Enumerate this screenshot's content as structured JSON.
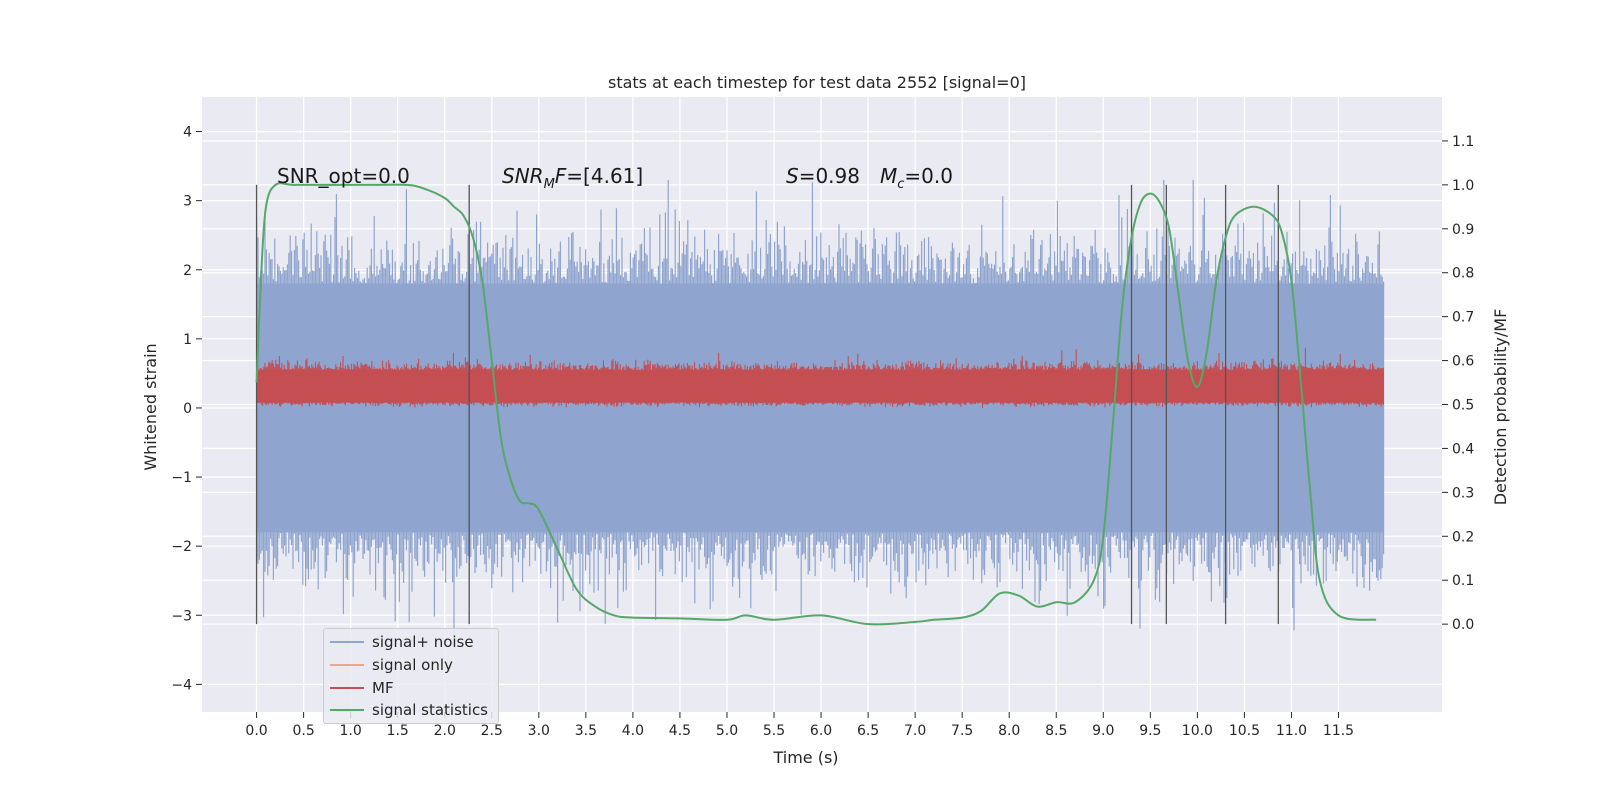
{
  "chart_data": {
    "type": "line",
    "title": "stats at each timestep for test data 2552 [signal=0]",
    "xlabel": "Time (s)",
    "ylabel": "Whitened strain",
    "y2label": "Detection probability/MF",
    "xlim": [
      -0.58,
      12.6
    ],
    "ylim": [
      -4.4,
      4.5
    ],
    "y2lim": [
      -0.2,
      1.2
    ],
    "x_ticks": [
      "0.0",
      "0.5",
      "1.0",
      "1.5",
      "2.0",
      "2.5",
      "3.0",
      "3.5",
      "4.0",
      "4.5",
      "5.0",
      "5.5",
      "6.0",
      "6.5",
      "7.0",
      "7.5",
      "8.0",
      "8.5",
      "9.0",
      "9.5",
      "10.0",
      "10.5",
      "11.0",
      "11.5"
    ],
    "y_ticks": [
      "4",
      "3",
      "2",
      "1",
      "0",
      "−1",
      "−2",
      "−3",
      "−4"
    ],
    "y2_ticks": [
      "1.1",
      "1.0",
      "0.9",
      "0.8",
      "0.7",
      "0.6",
      "0.5",
      "0.4",
      "0.3",
      "0.2",
      "0.1",
      "0.0"
    ],
    "grid": true,
    "legend_placement": "lower-left",
    "series": [
      {
        "name": "signal+ noise",
        "color": "#8fa5cf",
        "axis": "left",
        "style": "noise",
        "x_range": [
          0.0,
          11.98
        ],
        "band": [
          -1.8,
          1.8
        ],
        "peaks": [
          3.3,
          -3.2
        ]
      },
      {
        "name": "signal only",
        "color": "#e8a98e",
        "axis": "left",
        "values": []
      },
      {
        "name": "MF",
        "color": "#c44e52",
        "axis": "left",
        "style": "noise",
        "x_range": [
          0.0,
          11.98
        ],
        "band": [
          0.0,
          0.75
        ]
      },
      {
        "name": "signal statistics",
        "color": "#55a868",
        "axis": "right",
        "x": [
          0.0,
          0.05,
          0.1,
          0.2,
          0.4,
          0.8,
          1.2,
          1.6,
          1.8,
          2.0,
          2.1,
          2.2,
          2.3,
          2.4,
          2.5,
          2.6,
          2.7,
          2.8,
          2.9,
          3.0,
          3.2,
          3.4,
          3.6,
          3.8,
          4.0,
          4.5,
          5.0,
          5.2,
          5.5,
          6.0,
          6.5,
          7.0,
          7.2,
          7.5,
          7.7,
          7.9,
          8.1,
          8.3,
          8.5,
          8.7,
          8.9,
          9.0,
          9.1,
          9.2,
          9.3,
          9.4,
          9.5,
          9.6,
          9.7,
          9.8,
          9.9,
          10.0,
          10.1,
          10.2,
          10.3,
          10.4,
          10.6,
          10.8,
          10.9,
          11.0,
          11.1,
          11.2,
          11.3,
          11.5,
          11.9
        ],
        "y": [
          0.55,
          0.8,
          0.95,
          1.0,
          1.0,
          1.0,
          1.0,
          1.0,
          0.99,
          0.97,
          0.95,
          0.93,
          0.88,
          0.78,
          0.6,
          0.42,
          0.33,
          0.28,
          0.275,
          0.26,
          0.17,
          0.08,
          0.04,
          0.02,
          0.015,
          0.013,
          0.01,
          0.02,
          0.01,
          0.02,
          0.0,
          0.005,
          0.01,
          0.015,
          0.03,
          0.07,
          0.065,
          0.04,
          0.05,
          0.05,
          0.1,
          0.2,
          0.45,
          0.72,
          0.88,
          0.96,
          0.98,
          0.96,
          0.9,
          0.75,
          0.6,
          0.54,
          0.62,
          0.78,
          0.88,
          0.93,
          0.95,
          0.93,
          0.89,
          0.78,
          0.55,
          0.3,
          0.1,
          0.02,
          0.01
        ]
      }
    ],
    "vlines": [
      0.0,
      2.26,
      9.3,
      9.67,
      10.3,
      10.86
    ],
    "annotations": [
      {
        "id": "snr_opt",
        "text": "SNR_opt=0.0"
      },
      {
        "id": "snr_mf",
        "text_label": "SNR",
        "text_sub": "M",
        "text_label2": "F",
        "text_value": "=[4.61]"
      },
      {
        "id": "s_val",
        "text_label": "S",
        "text_value": "=0.98"
      },
      {
        "id": "mc_val",
        "text_label": "M",
        "text_sub": "c",
        "text_value": "=0.0"
      }
    ]
  }
}
